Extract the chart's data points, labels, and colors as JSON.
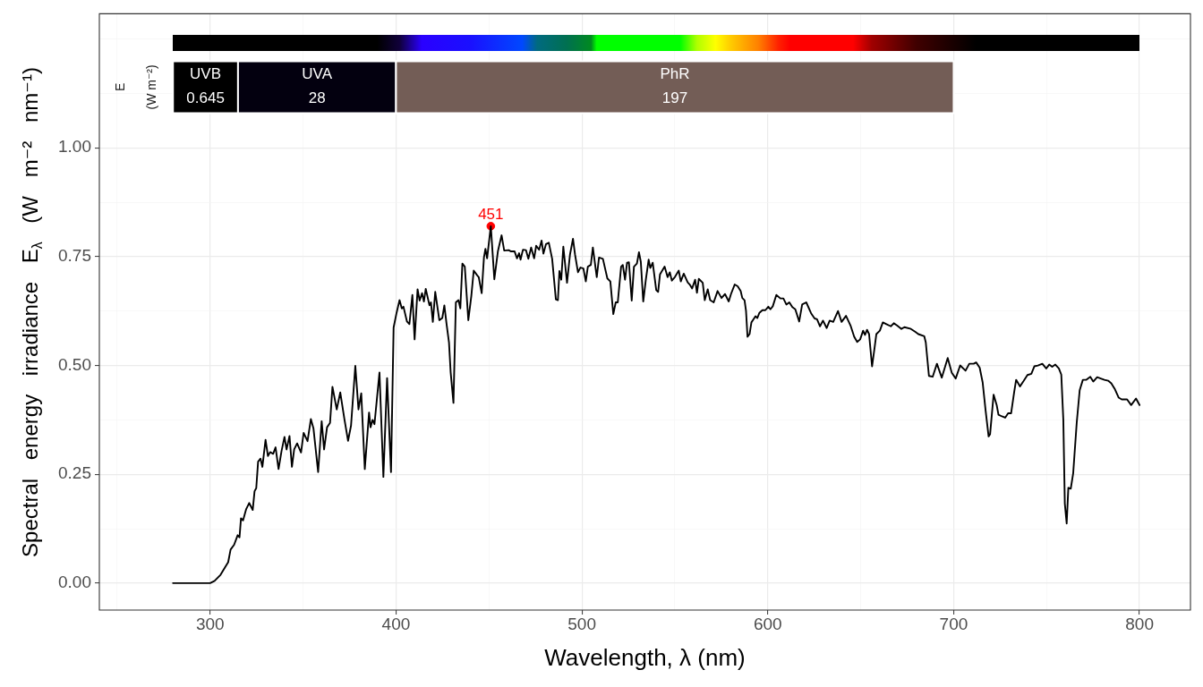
{
  "chart_data": {
    "type": "line",
    "xlabel": "Wavelength, λ (nm)",
    "ylabel": "Spectral energy irradiance E$_{λ}$ (W m⁻² nm⁻¹)",
    "xlim": [
      240.4,
      827.4
    ],
    "xticks": [
      {
        "value": 250,
        "label": null
      },
      300,
      {
        "value": 350,
        "label": null
      },
      400,
      {
        "value": 450,
        "label": null
      },
      500,
      {
        "value": 550,
        "label": null
      },
      600,
      {
        "value": 650,
        "label": null
      },
      700,
      {
        "value": 750,
        "label": null
      },
      800
    ],
    "ylim": [
      -0.062,
      1.308
    ],
    "yticks": [
      {
        "value": 0,
        "label": "0.00"
      },
      {
        "value": 0.125,
        "label": null
      },
      {
        "value": 0.25,
        "label": "0.25"
      },
      {
        "value": 0.375,
        "label": null
      },
      {
        "value": 0.5,
        "label": "0.50"
      },
      {
        "value": 0.625,
        "label": null
      },
      {
        "value": 0.75,
        "label": "0.75"
      },
      {
        "value": 0.875,
        "label": null
      },
      {
        "value": 1,
        "label": "1.00"
      },
      {
        "value": 1.125,
        "label": null
      },
      {
        "value": 1.25,
        "label": null
      }
    ],
    "grid": true,
    "series": [
      {
        "color": "#000000",
        "x": [
          280,
          300,
          302.4,
          305.6,
          308,
          309.7,
          311,
          312.9,
          314.8,
          315.8,
          316.6,
          317.7,
          319.4,
          321,
          322.9,
          323.9,
          324.8,
          325.8,
          327.1,
          328.1,
          329.8,
          331.1,
          332.3,
          333.9,
          335.2,
          336.8,
          338.4,
          340,
          341.1,
          342.7,
          344,
          345.2,
          346.8,
          348.9,
          350.3,
          352.4,
          354.2,
          355.6,
          358.1,
          360,
          361.3,
          362.9,
          364.5,
          365.8,
          368.1,
          370,
          372.3,
          374.2,
          375.8,
          378.1,
          379.8,
          381.3,
          383.2,
          385.5,
          386.3,
          387.4,
          388.4,
          391.1,
          393.2,
          395.2,
          397.3,
          398.7,
          400.3,
          401.9,
          403.1,
          404,
          405.9,
          407.2,
          408.8,
          410,
          411.6,
          412.7,
          414,
          415,
          416,
          418,
          418.8,
          419.8,
          421.1,
          423.3,
          424.9,
          426,
          427.2,
          428.5,
          429.4,
          430.9,
          432.2,
          433.6,
          434.6,
          435.7,
          437,
          438.9,
          440.5,
          441.8,
          443.7,
          444.5,
          446.1,
          447.3,
          448.1,
          449,
          451,
          452.9,
          454.8,
          456.8,
          458.2,
          460.6,
          461.9,
          463.8,
          465.1,
          466.2,
          467,
          468.3,
          469.9,
          471.2,
          472.7,
          474.3,
          475.4,
          477,
          478.3,
          479.3,
          480.7,
          482.2,
          484,
          486,
          487.1,
          487.9,
          488.9,
          490,
          492,
          493.6,
          495.2,
          496.3,
          497.9,
          499.2,
          500.8,
          502.1,
          503.2,
          504.8,
          505.9,
          508,
          509.2,
          511.3,
          513.7,
          515.3,
          516.9,
          518.2,
          519.3,
          521.1,
          522,
          523.2,
          524.3,
          525.3,
          526.8,
          528,
          529.6,
          530.7,
          531.7,
          533,
          534.4,
          535.9,
          536.8,
          538.1,
          540,
          541,
          542,
          544.5,
          546.1,
          547.3,
          548.4,
          550,
          552.1,
          553.2,
          554.8,
          556.9,
          558,
          559.3,
          560.9,
          561.9,
          562.9,
          565,
          566.1,
          567.7,
          569,
          570.9,
          573,
          575.1,
          577,
          579,
          580.2,
          582.2,
          583.8,
          585.4,
          586.3,
          587.5,
          588.3,
          589.1,
          590.2,
          591.2,
          592.3,
          593.4,
          594.4,
          595.5,
          597.1,
          598.7,
          600.3,
          601.4,
          602.7,
          604.6,
          606.8,
          608.4,
          610,
          611.6,
          613.2,
          614.8,
          616.9,
          618.5,
          620.7,
          623.3,
          625.2,
          626.5,
          628.1,
          629.7,
          631.7,
          633.3,
          635.2,
          637.8,
          639.7,
          642.1,
          644.5,
          646.5,
          648.1,
          649.7,
          651.3,
          652.3,
          653.4,
          654.5,
          656.1,
          657.4,
          658.4,
          660.3,
          661.9,
          663.8,
          666.2,
          667.8,
          669.5,
          671.9,
          673.5,
          677,
          679.4,
          681,
          684.2,
          685,
          686.7,
          688.7,
          691,
          693.6,
          696.8,
          699,
          701.1,
          703.5,
          706.4,
          708.4,
          710.8,
          712.1,
          714,
          715.6,
          717.2,
          718.8,
          719.6,
          721.5,
          723.2,
          724.1,
          726,
          727.7,
          729.3,
          730.9,
          732.5,
          733.6,
          735.7,
          737.6,
          739.7,
          741.8,
          743.4,
          745.3,
          747.7,
          749.8,
          751.4,
          753,
          754.7,
          756.6,
          757.9,
          759,
          759.8,
          760.8,
          761.7,
          763,
          764.3,
          766.2,
          767.8,
          769.5,
          771.4,
          773.5,
          775.1,
          777.2,
          779.1,
          781.1,
          783.1,
          784.8,
          786.8,
          788.8,
          790.4,
          793.3,
          795.5,
          798.1,
          800
        ],
        "values": [
          0,
          0,
          0.005,
          0.019,
          0.036,
          0.048,
          0.077,
          0.088,
          0.11,
          0.105,
          0.149,
          0.144,
          0.17,
          0.184,
          0.168,
          0.211,
          0.218,
          0.279,
          0.286,
          0.267,
          0.329,
          0.292,
          0.301,
          0.297,
          0.312,
          0.262,
          0.303,
          0.336,
          0.307,
          0.338,
          0.267,
          0.307,
          0.321,
          0.3,
          0.345,
          0.326,
          0.377,
          0.355,
          0.255,
          0.372,
          0.307,
          0.358,
          0.368,
          0.451,
          0.399,
          0.438,
          0.375,
          0.327,
          0.362,
          0.499,
          0.399,
          0.436,
          0.262,
          0.392,
          0.358,
          0.375,
          0.365,
          0.484,
          0.244,
          0.471,
          0.255,
          0.587,
          0.621,
          0.65,
          0.631,
          0.635,
          0.601,
          0.595,
          0.662,
          0.56,
          0.675,
          0.649,
          0.666,
          0.647,
          0.676,
          0.638,
          0.645,
          0.6,
          0.669,
          0.604,
          0.609,
          0.638,
          0.595,
          0.553,
          0.484,
          0.414,
          0.645,
          0.65,
          0.631,
          0.734,
          0.727,
          0.604,
          0.659,
          0.718,
          0.707,
          0.703,
          0.666,
          0.748,
          0.768,
          0.746,
          0.82,
          0.698,
          0.762,
          0.799,
          0.764,
          0.765,
          0.762,
          0.762,
          0.746,
          0.758,
          0.743,
          0.766,
          0.765,
          0.745,
          0.771,
          0.746,
          0.775,
          0.766,
          0.787,
          0.757,
          0.779,
          0.782,
          0.745,
          0.652,
          0.65,
          0.717,
          0.697,
          0.773,
          0.69,
          0.755,
          0.791,
          0.755,
          0.714,
          0.725,
          0.723,
          0.693,
          0.727,
          0.731,
          0.771,
          0.703,
          0.748,
          0.745,
          0.7,
          0.693,
          0.618,
          0.645,
          0.645,
          0.727,
          0.731,
          0.697,
          0.736,
          0.737,
          0.649,
          0.727,
          0.734,
          0.76,
          0.738,
          0.647,
          0.697,
          0.743,
          0.724,
          0.736,
          0.673,
          0.669,
          0.709,
          0.727,
          0.703,
          0.714,
          0.695,
          0.703,
          0.718,
          0.693,
          0.711,
          0.691,
          0.686,
          0.677,
          0.697,
          0.667,
          0.699,
          0.69,
          0.65,
          0.675,
          0.65,
          0.645,
          0.671,
          0.655,
          0.664,
          0.647,
          0.664,
          0.686,
          0.682,
          0.671,
          0.655,
          0.65,
          0.625,
          0.566,
          0.572,
          0.599,
          0.606,
          0.613,
          0.609,
          0.621,
          0.627,
          0.627,
          0.635,
          0.629,
          0.636,
          0.662,
          0.654,
          0.654,
          0.64,
          0.645,
          0.634,
          0.629,
          0.601,
          0.64,
          0.645,
          0.62,
          0.608,
          0.606,
          0.59,
          0.603,
          0.586,
          0.603,
          0.6,
          0.625,
          0.6,
          0.614,
          0.592,
          0.566,
          0.554,
          0.56,
          0.58,
          0.57,
          0.582,
          0.572,
          0.498,
          0.539,
          0.572,
          0.58,
          0.599,
          0.595,
          0.59,
          0.597,
          0.592,
          0.584,
          0.588,
          0.584,
          0.577,
          0.572,
          0.567,
          0.553,
          0.476,
          0.474,
          0.504,
          0.472,
          0.517,
          0.483,
          0.47,
          0.5,
          0.488,
          0.504,
          0.504,
          0.507,
          0.495,
          0.461,
          0.396,
          0.337,
          0.342,
          0.433,
          0.408,
          0.387,
          0.383,
          0.38,
          0.39,
          0.39,
          0.437,
          0.467,
          0.452,
          0.464,
          0.478,
          0.481,
          0.498,
          0.5,
          0.504,
          0.493,
          0.502,
          0.497,
          0.502,
          0.493,
          0.479,
          0.375,
          0.183,
          0.137,
          0.219,
          0.217,
          0.252,
          0.368,
          0.443,
          0.467,
          0.467,
          0.474,
          0.463,
          0.473,
          0.47,
          0.467,
          0.465,
          0.459,
          0.445,
          0.426,
          0.422,
          0.422,
          0.409,
          0.424,
          0.409
        ]
      },
      {
        "type": "scatter",
        "color": "#ff0000",
        "marker": "circle",
        "x": [
          451
        ],
        "values": [
          0.82
        ]
      }
    ],
    "bands": [
      {
        "axis": "x",
        "from": 280,
        "to": 315,
        "label": "UVB",
        "color": "#000000"
      },
      {
        "axis": "x",
        "from": 315,
        "to": 400,
        "label": "UVA",
        "color": "#03000f"
      },
      {
        "axis": "x",
        "from": 400,
        "to": 700,
        "label": "PhR",
        "color": "#735d56"
      }
    ],
    "annotations": [
      "E",
      "(W m⁻²)",
      "0.645",
      "28",
      "197",
      {
        "text": "451",
        "x": 451,
        "y": 0.82
      }
    ]
  }
}
